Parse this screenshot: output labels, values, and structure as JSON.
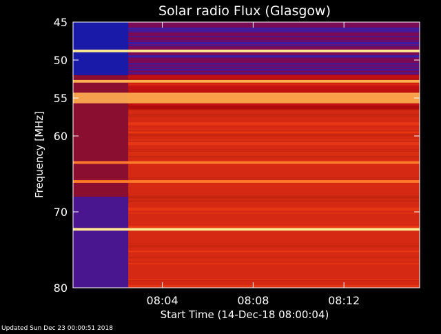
{
  "chart_data": {
    "type": "heatmap",
    "title": "Solar radio Flux (Glasgow)",
    "xlabel": "Start Time (14-Dec-18 08:00:04)",
    "ylabel": "Frequency [MHz]",
    "x_unit": "time (HH:MM)",
    "xlim": [
      "08:00:04",
      "08:15:20"
    ],
    "ylim": [
      45,
      80
    ],
    "y_ticks": [
      45,
      50,
      55,
      60,
      70,
      80
    ],
    "x_ticks": [
      "08:04",
      "08:08",
      "08:12"
    ],
    "grid": false,
    "colormap": "blue-red-yellow-white (low to high flux)",
    "features": {
      "quiet_period_end": "08:02:30",
      "bright_bands_mhz": [
        {
          "freq": 48.8,
          "intensity": "very high"
        },
        {
          "freq": 52.8,
          "intensity": "high"
        },
        {
          "freq": 55.0,
          "intensity": "high",
          "width_mhz": 1.4
        },
        {
          "freq": 63.5,
          "intensity": "medium"
        },
        {
          "freq": 66.0,
          "intensity": "medium"
        },
        {
          "freq": 72.3,
          "intensity": "very high"
        }
      ],
      "low_flux_band_mhz": [
        45,
        52
      ]
    }
  },
  "footer": {
    "updated": "Updated Sun Dec 23 00:00:51 2018"
  },
  "colors": {
    "background": "#000000",
    "low": "#1a1aa8",
    "mid": "#c01010",
    "high": "#ff5a1a",
    "peak": "#ffe890"
  }
}
